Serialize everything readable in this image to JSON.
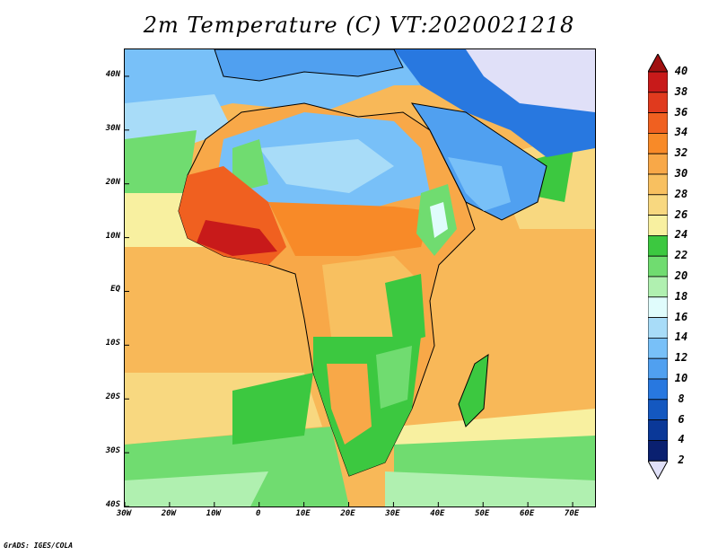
{
  "title": "2m Temperature (C) VT:2020021218",
  "credit": "GrADS: IGES/COLA",
  "map": {
    "projection": "lat-lon",
    "lon_range": [
      -30,
      75
    ],
    "lat_range": [
      -40,
      45
    ],
    "lat_ticks": [
      {
        "value": 40,
        "label": "40N"
      },
      {
        "value": 30,
        "label": "30N"
      },
      {
        "value": 20,
        "label": "20N"
      },
      {
        "value": 10,
        "label": "10N"
      },
      {
        "value": 0,
        "label": "EQ"
      },
      {
        "value": -10,
        "label": "10S"
      },
      {
        "value": -20,
        "label": "20S"
      },
      {
        "value": -30,
        "label": "30S"
      },
      {
        "value": -40,
        "label": "40S"
      }
    ],
    "lon_ticks": [
      {
        "value": -30,
        "label": "30W"
      },
      {
        "value": -20,
        "label": "20W"
      },
      {
        "value": -10,
        "label": "10W"
      },
      {
        "value": 0,
        "label": "0"
      },
      {
        "value": 10,
        "label": "10E"
      },
      {
        "value": 20,
        "label": "20E"
      },
      {
        "value": 30,
        "label": "30E"
      },
      {
        "value": 40,
        "label": "40E"
      },
      {
        "value": 50,
        "label": "50E"
      },
      {
        "value": 60,
        "label": "60E"
      },
      {
        "value": 70,
        "label": "70E"
      }
    ]
  },
  "colorbar": {
    "top_arrow_color": "#a01010",
    "bottom_arrow_color": "#e0e0f8",
    "levels": [
      {
        "label": "40",
        "color": "#a01010"
      },
      {
        "label": "38",
        "color": "#c81a1a"
      },
      {
        "label": "36",
        "color": "#e03a1e"
      },
      {
        "label": "34",
        "color": "#f06020"
      },
      {
        "label": "32",
        "color": "#f88a28"
      },
      {
        "label": "30",
        "color": "#f8a848"
      },
      {
        "label": "28",
        "color": "#f8c060"
      },
      {
        "label": "26",
        "color": "#f8d880"
      },
      {
        "label": "24",
        "color": "#f8f0a0"
      },
      {
        "label": "22",
        "color": "#3cc840"
      },
      {
        "label": "20",
        "color": "#70dc70"
      },
      {
        "label": "18",
        "color": "#b0f0b0"
      },
      {
        "label": "16",
        "color": "#e0fcfc"
      },
      {
        "label": "14",
        "color": "#a8dcf8"
      },
      {
        "label": "12",
        "color": "#78c0f8"
      },
      {
        "label": "10",
        "color": "#50a0f0"
      },
      {
        "label": "8",
        "color": "#2878e0"
      },
      {
        "label": "6",
        "color": "#1458c0"
      },
      {
        "label": "4",
        "color": "#0a3898"
      },
      {
        "label": "2",
        "color": "#0a2070"
      }
    ]
  }
}
